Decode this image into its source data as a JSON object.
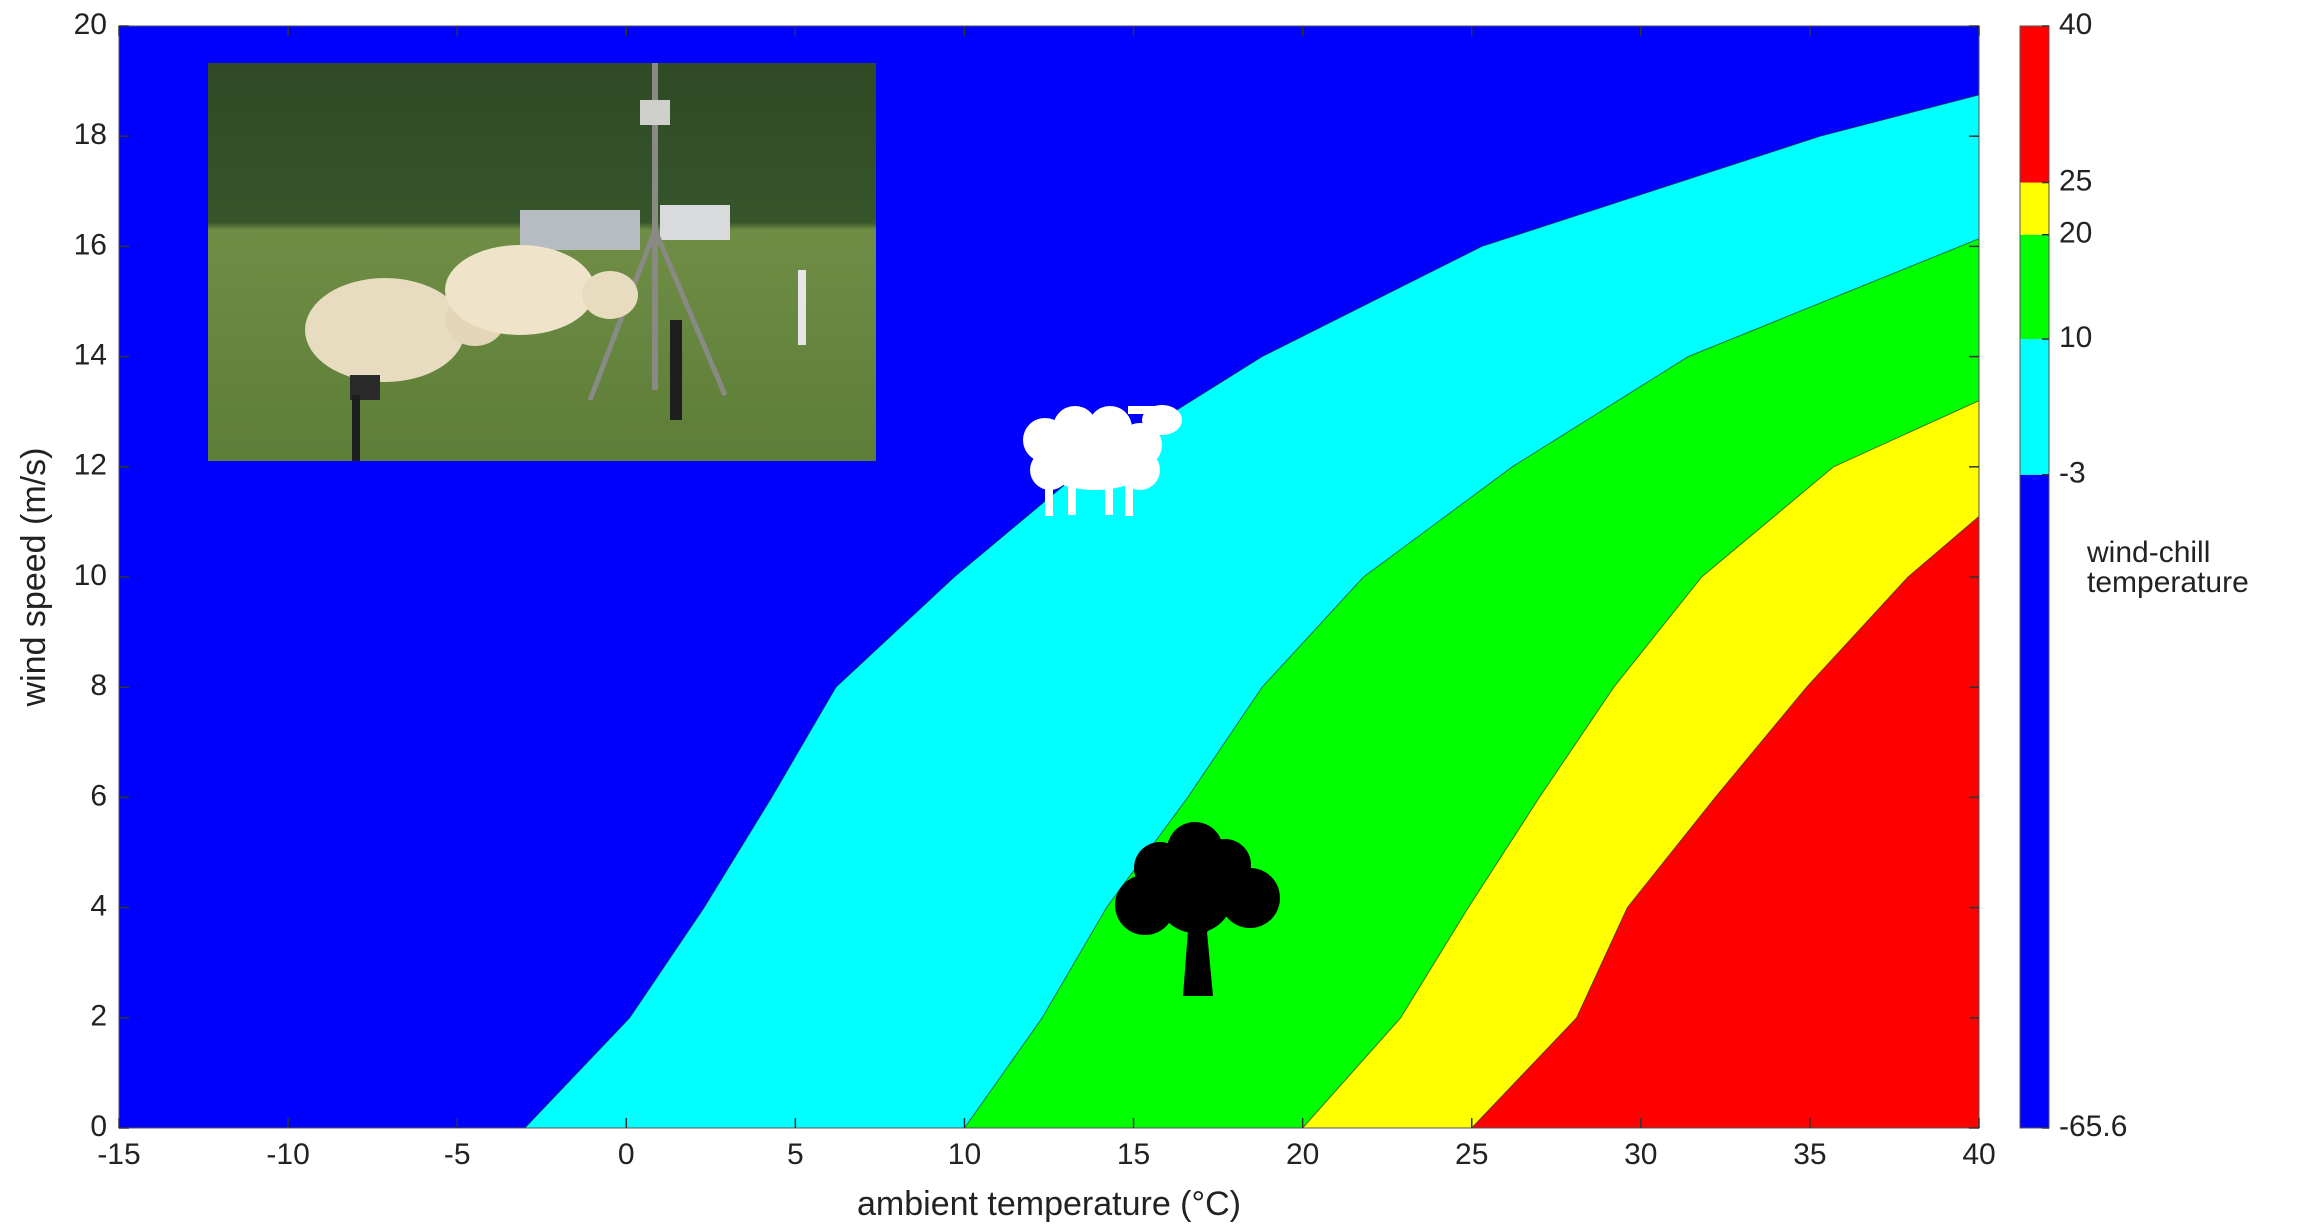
{
  "chart_data": {
    "type": "contour",
    "xlabel": "ambient temperature (°C)",
    "ylabel": "wind speed (m/s)",
    "colorbar_label": "wind-chill temperature",
    "xlim": [
      -15,
      40
    ],
    "ylim": [
      0,
      20
    ],
    "xticks": [
      -15,
      -10,
      -5,
      0,
      5,
      10,
      15,
      20,
      25,
      30,
      35,
      40
    ],
    "yticks": [
      0,
      2,
      4,
      6,
      8,
      10,
      12,
      14,
      16,
      18,
      20
    ],
    "clim": [
      -65.6,
      40
    ],
    "levels": [
      -65.6,
      -3,
      10,
      20,
      25,
      40
    ],
    "colors": [
      "#0000ff",
      "#00ffff",
      "#00ff00",
      "#ffff00",
      "#ff0000"
    ],
    "contours": [
      {
        "x": [
          -3,
          0.1,
          2.3,
          4.3,
          6.2,
          9.7,
          13.6,
          18.8,
          25.3,
          35.3,
          40
        ],
        "y": [
          0,
          2,
          4,
          6,
          8,
          10,
          12,
          14,
          16,
          18,
          18.75
        ]
      },
      {
        "x": [
          10,
          12.3,
          14.2,
          16.6,
          18.8,
          21.8,
          26.2,
          31.4,
          40
        ],
        "y": [
          0,
          2,
          4,
          6,
          8,
          10,
          12,
          14,
          16.14
        ]
      },
      {
        "x": [
          20,
          22.9,
          24.9,
          27,
          29.2,
          31.8,
          35.7,
          40
        ],
        "y": [
          0,
          2,
          4,
          6,
          8,
          10,
          12,
          13.2
        ]
      },
      {
        "x": [
          25,
          28.1,
          29.6,
          32.2,
          34.9,
          37.9,
          40
        ],
        "y": [
          0,
          2,
          4,
          6,
          8,
          10,
          11.1
        ]
      }
    ]
  }
}
